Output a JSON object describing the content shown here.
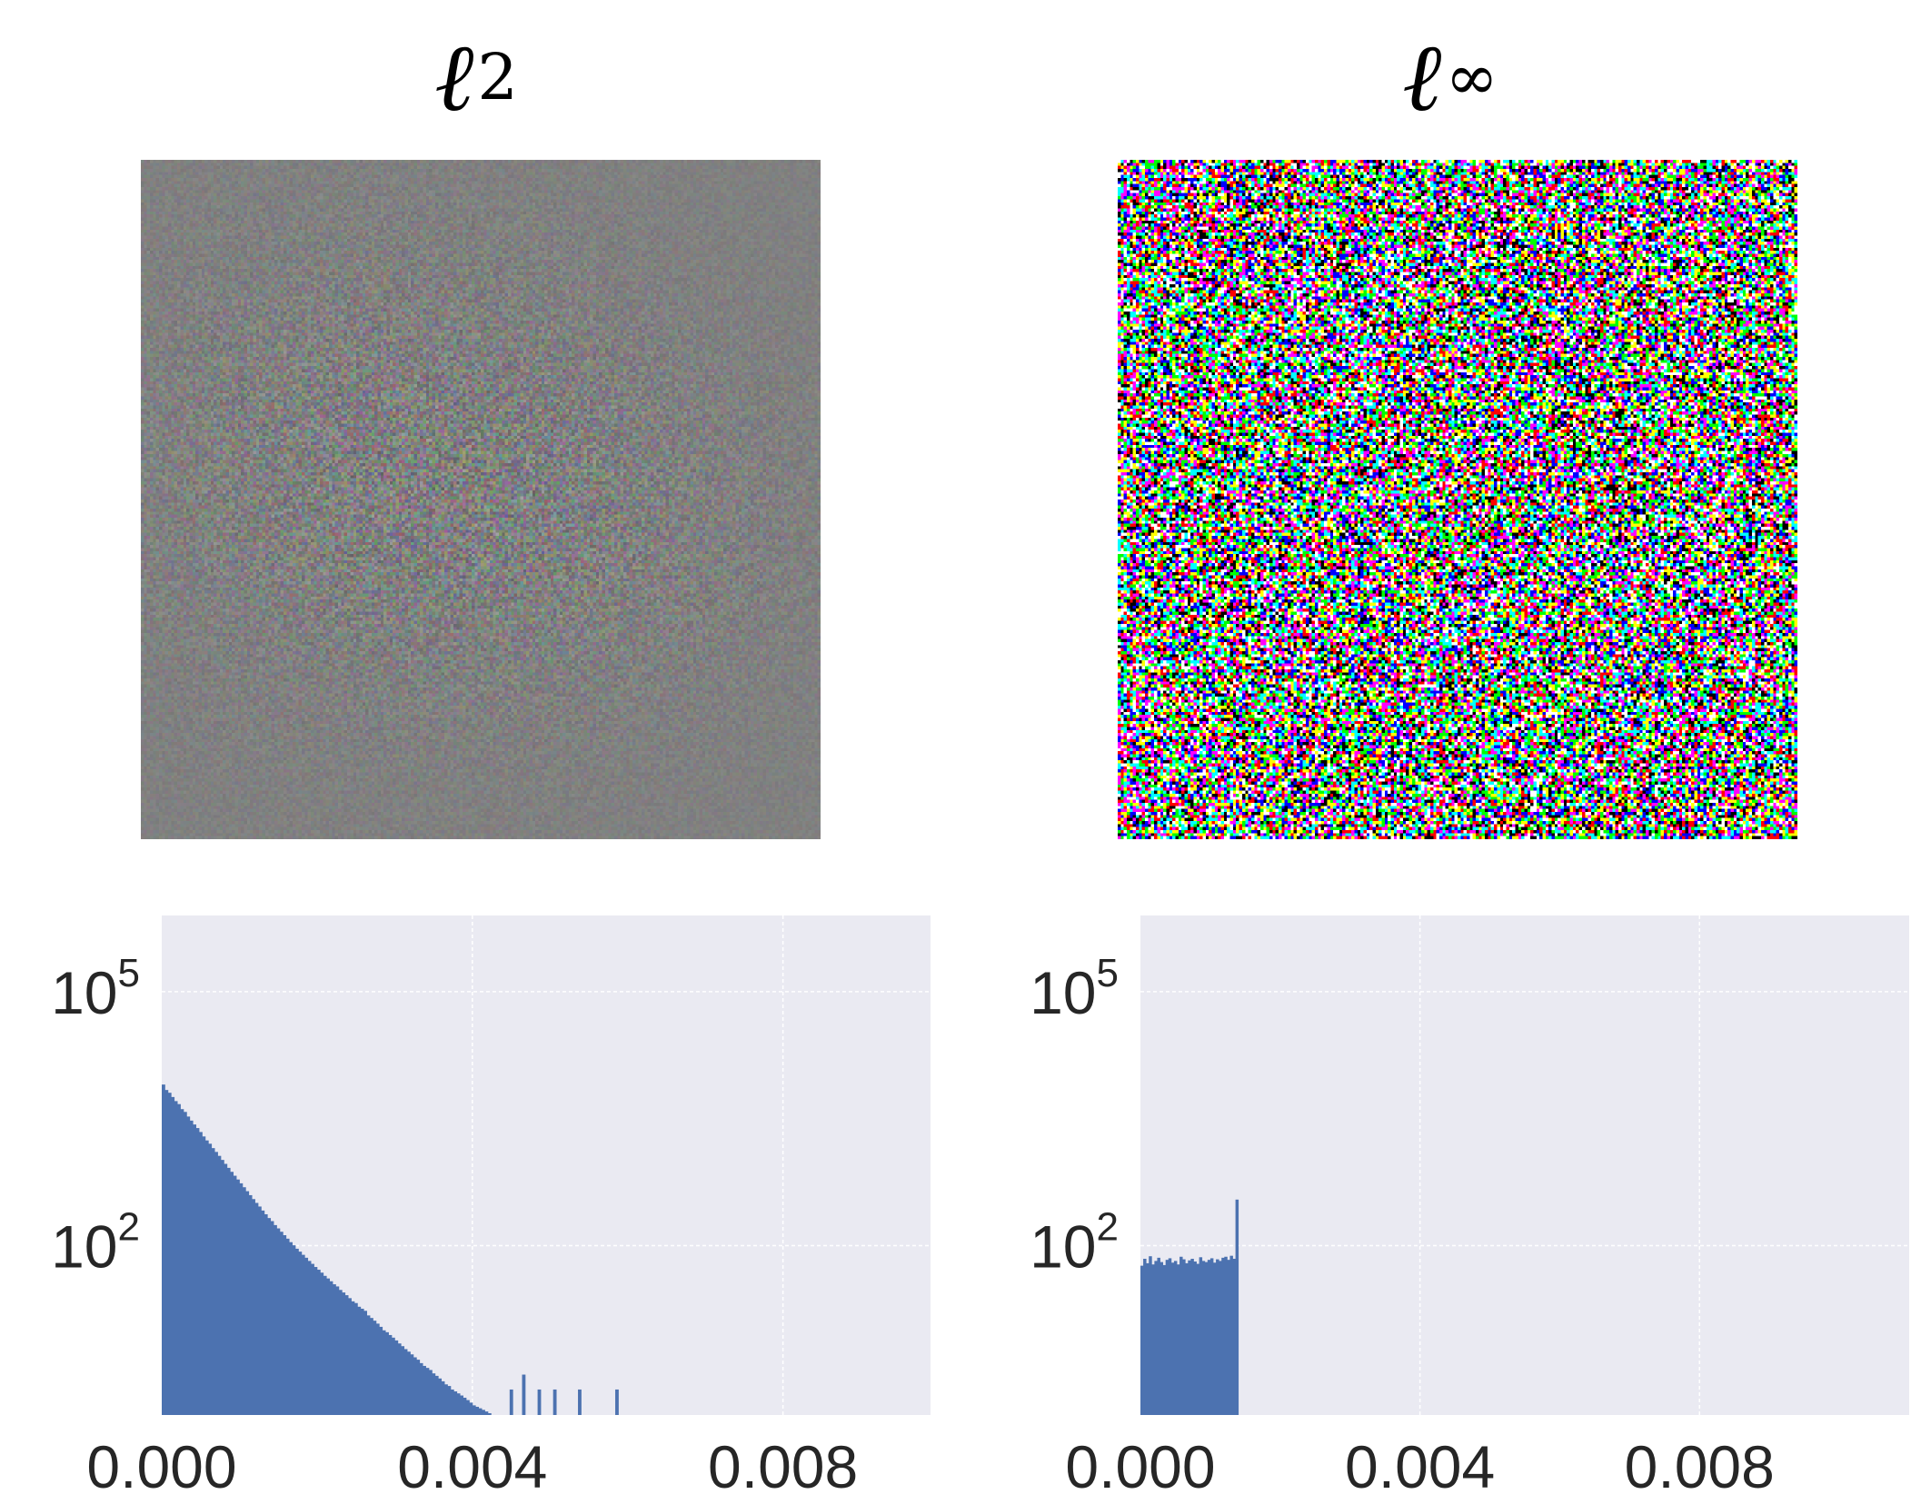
{
  "panels": [
    {
      "title_main": "ℓ",
      "title_sub": "2",
      "image_label": "perturbation-l2",
      "noise_style": "low-magnitude"
    },
    {
      "title_main": "ℓ",
      "title_sub": "∞",
      "image_label": "perturbation-linf",
      "noise_style": "saturated"
    }
  ],
  "colors": {
    "bar": "#4c72b0",
    "plot_bg": "#eaeaf2",
    "grid": "#ffffff",
    "tick_text": "#262626"
  },
  "chart_data": [
    {
      "type": "bar",
      "title": "ℓ2",
      "yscale": "log",
      "xlim": [
        0.0,
        0.0099
      ],
      "ylim_log10": [
        0.0,
        5.9
      ],
      "xticks": [
        0.0,
        0.004,
        0.008
      ],
      "xtick_labels": [
        "0.000",
        "0.004",
        "0.008"
      ],
      "yticks_log10": [
        2,
        5
      ],
      "ytick_labels": [
        {
          "base": "10",
          "exp": "2"
        },
        {
          "base": "10",
          "exp": "5"
        }
      ],
      "bins": {
        "start": 0.0,
        "width": 4e-05
      },
      "counts": [
        8000,
        6900,
        6400,
        5700,
        5100,
        4700,
        4100,
        3800,
        3350,
        3000,
        2700,
        2450,
        2200,
        1950,
        1750,
        1600,
        1420,
        1280,
        1150,
        1030,
        925,
        830,
        745,
        670,
        605,
        545,
        490,
        440,
        395,
        355,
        320,
        290,
        260,
        235,
        212,
        195,
        175,
        160,
        146,
        133,
        121,
        110,
        101,
        92,
        85,
        78,
        72,
        66,
        61,
        56,
        52,
        48,
        44,
        41,
        38,
        35,
        33,
        30,
        28,
        26,
        24,
        22,
        21,
        19,
        18,
        17,
        15,
        14,
        13,
        12,
        11,
        10,
        9.5,
        8.8,
        8.2,
        7.6,
        7.0,
        6.5,
        6.0,
        5.6,
        5.2,
        4.8,
        4.5,
        4.1,
        3.8,
        3.6,
        3.4,
        3.1,
        2.9,
        2.7,
        2.5,
        2.3,
        2.2,
        2.0,
        1.9,
        1.8,
        1.7,
        1.6,
        1.5,
        1.4,
        1.3,
        1.25,
        1.2,
        1.15,
        1.1,
        1.05,
        1.0,
        1.0,
        1.0,
        1.0,
        1.0,
        0,
        2,
        1,
        0,
        1,
        3,
        0,
        1,
        1,
        0,
        2,
        1,
        0,
        0,
        1,
        2,
        0,
        1,
        0,
        1,
        0,
        0,
        1,
        2,
        0,
        0,
        1,
        0,
        1,
        0,
        0,
        0,
        1,
        0,
        0,
        2,
        0,
        0,
        1,
        0,
        0,
        0,
        0,
        1,
        0,
        0,
        0,
        0,
        0,
        0,
        0,
        0,
        0,
        1,
        0,
        0,
        0,
        0,
        0,
        0,
        0,
        1,
        0,
        0,
        0,
        0,
        0,
        0,
        0,
        0,
        0,
        0,
        0,
        0,
        0,
        0,
        0,
        0,
        0,
        0,
        0,
        0,
        0,
        0,
        0,
        0,
        0,
        0,
        0,
        0,
        0,
        0,
        0,
        0,
        0,
        0,
        0,
        0,
        0,
        0,
        0,
        0,
        0,
        0,
        0,
        0,
        0,
        0,
        0,
        0,
        0,
        0,
        0,
        0,
        0,
        0,
        0,
        0,
        0,
        0,
        0,
        0,
        0,
        0,
        0,
        0,
        0,
        0,
        0,
        0,
        0,
        0,
        0,
        0,
        0,
        0,
        0,
        0,
        1
      ]
    },
    {
      "type": "bar",
      "title": "ℓ∞",
      "yscale": "log",
      "xlim": [
        0.0,
        0.011
      ],
      "ylim_log10": [
        0.0,
        5.9
      ],
      "xticks": [
        0.0,
        0.004,
        0.008
      ],
      "xtick_labels": [
        "0.000",
        "0.004",
        "0.008"
      ],
      "yticks_log10": [
        2,
        5
      ],
      "ytick_labels": [
        {
          "base": "10",
          "exp": "2"
        },
        {
          "base": "10",
          "exp": "5"
        }
      ],
      "bins": {
        "start": 0.0,
        "width": 4e-05
      },
      "counts": [
        58,
        70,
        62,
        75,
        60,
        66,
        72,
        64,
        59,
        68,
        71,
        63,
        66,
        60,
        74,
        69,
        62,
        67,
        70,
        65,
        61,
        73,
        66,
        64,
        68,
        71,
        63,
        69,
        66,
        72,
        74,
        68,
        76,
        70,
        350
      ]
    }
  ]
}
